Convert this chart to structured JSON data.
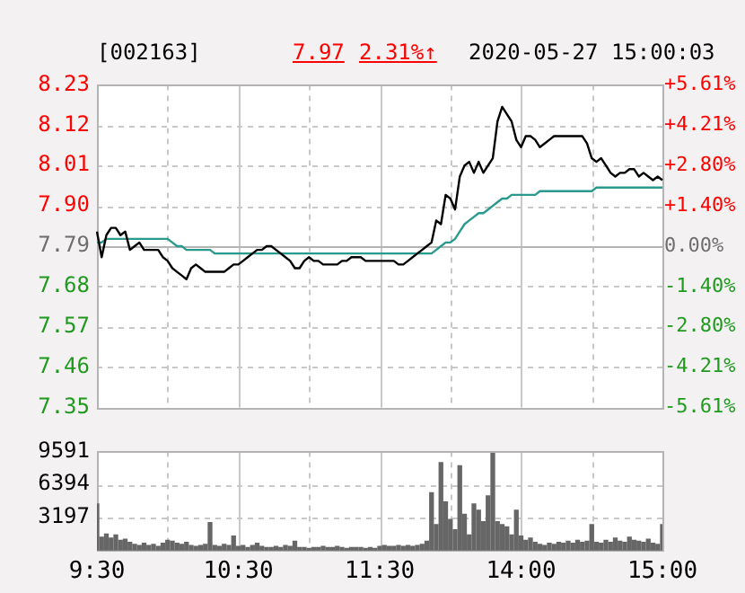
{
  "chart_data": [
    {
      "type": "line",
      "title": "[002163]",
      "annotations": [
        "7.97",
        "2.31%↑",
        "2020-05-27 15:00:03"
      ],
      "categories": [
        null,
        null,
        null,
        null,
        null,
        null,
        null,
        null,
        null,
        null,
        null,
        null,
        null,
        null,
        null,
        null,
        null,
        null,
        null,
        null,
        null,
        null,
        null,
        null,
        null,
        null,
        null,
        null,
        null,
        null,
        null,
        null,
        null,
        null,
        null,
        null,
        null,
        null,
        null,
        null,
        null,
        null,
        null,
        null,
        null,
        null,
        null,
        null,
        null,
        null,
        null,
        null,
        null,
        null,
        null,
        null,
        null,
        null,
        null,
        null,
        null,
        null,
        null,
        null,
        null,
        null,
        null,
        null,
        null,
        null,
        null,
        null,
        null,
        null,
        null,
        null,
        null,
        null,
        null,
        null,
        null,
        null,
        null,
        null,
        null,
        null,
        null,
        null,
        null,
        null,
        null,
        null,
        null,
        null,
        null,
        null,
        null,
        null,
        null,
        null,
        null,
        null,
        null,
        null,
        null,
        null,
        null,
        null,
        null,
        null,
        null,
        null,
        null,
        null,
        null,
        null,
        null,
        null,
        null,
        null,
        null
      ],
      "series": [
        {
          "color": "#000000",
          "values": [
            7.83,
            7.76,
            7.82,
            7.84,
            7.84,
            7.82,
            7.83,
            7.78,
            7.79,
            7.8,
            7.78,
            7.78,
            7.78,
            7.78,
            7.76,
            7.75,
            7.73,
            7.72,
            7.71,
            7.7,
            7.73,
            7.74,
            7.73,
            7.72,
            7.72,
            7.72,
            7.72,
            7.72,
            7.73,
            7.74,
            7.74,
            7.75,
            7.76,
            7.77,
            7.78,
            7.78,
            7.79,
            7.79,
            7.78,
            7.77,
            7.76,
            7.75,
            7.73,
            7.73,
            7.75,
            7.76,
            7.75,
            7.75,
            7.74,
            7.74,
            7.74,
            7.74,
            7.75,
            7.75,
            7.76,
            7.76,
            7.76,
            7.75,
            7.75,
            7.75,
            7.75,
            7.75,
            7.75,
            7.75,
            7.74,
            7.74,
            7.75,
            7.76,
            7.77,
            7.78,
            7.79,
            7.8,
            7.86,
            7.85,
            7.93,
            7.92,
            7.89,
            7.98,
            8.01,
            8.02,
            7.99,
            8.02,
            7.99,
            8.01,
            8.03,
            8.13,
            8.17,
            8.15,
            8.13,
            8.08,
            8.06,
            8.09,
            8.09,
            8.08,
            8.06,
            8.07,
            8.08,
            8.09,
            8.09,
            8.09,
            8.09,
            8.09,
            8.09,
            8.09,
            8.07,
            8.03,
            8.02,
            8.03,
            8.01,
            7.99,
            7.98,
            7.99,
            7.99,
            8.0,
            8.0,
            7.98,
            7.99,
            7.98,
            7.97,
            7.98,
            7.97
          ]
        },
        {
          "color": "#2a9a8f",
          "values": [
            7.8,
            7.8,
            7.81,
            7.81,
            7.81,
            7.81,
            7.81,
            7.81,
            7.81,
            7.81,
            7.81,
            7.81,
            7.81,
            7.81,
            7.81,
            7.81,
            7.8,
            7.79,
            7.79,
            7.78,
            7.78,
            7.78,
            7.78,
            7.78,
            7.78,
            7.77,
            7.77,
            7.77,
            7.77,
            7.77,
            7.77,
            7.77,
            7.77,
            7.77,
            7.77,
            7.77,
            7.77,
            7.77,
            7.77,
            7.77,
            7.77,
            7.77,
            7.77,
            7.77,
            7.77,
            7.77,
            7.77,
            7.77,
            7.77,
            7.77,
            7.77,
            7.77,
            7.77,
            7.77,
            7.77,
            7.77,
            7.77,
            7.77,
            7.77,
            7.77,
            7.77,
            7.77,
            7.77,
            7.77,
            7.77,
            7.77,
            7.77,
            7.77,
            7.77,
            7.77,
            7.77,
            7.77,
            7.78,
            7.79,
            7.8,
            7.8,
            7.81,
            7.83,
            7.85,
            7.86,
            7.87,
            7.88,
            7.88,
            7.89,
            7.9,
            7.91,
            7.92,
            7.92,
            7.93,
            7.93,
            7.93,
            7.93,
            7.93,
            7.93,
            7.94,
            7.94,
            7.94,
            7.94,
            7.94,
            7.94,
            7.94,
            7.94,
            7.94,
            7.94,
            7.94,
            7.94,
            7.95,
            7.95,
            7.95,
            7.95,
            7.95,
            7.95,
            7.95,
            7.95,
            7.95,
            7.95,
            7.95,
            7.95,
            7.95,
            7.95,
            7.95
          ]
        }
      ],
      "ylim": [
        7.35,
        8.23
      ],
      "yticks": [
        7.35,
        7.46,
        7.57,
        7.68,
        7.79,
        {
          "value": 7.9,
          "label": "7.90"
        },
        8.01,
        8.12,
        8.23
      ],
      "y2lim": [
        -5.61,
        5.61
      ],
      "y2ticks": [
        {
          "value": -5.61,
          "label": "-5.61%"
        },
        {
          "value": -4.21,
          "label": "-4.21%"
        },
        {
          "value": -2.8,
          "label": "-2.80%"
        },
        {
          "value": -1.4,
          "label": "-1.40%"
        },
        {
          "value": 0,
          "label": "0.00%"
        },
        {
          "value": 1.4,
          "label": "+1.40%"
        },
        {
          "value": 2.8,
          "label": "+2.80%"
        },
        {
          "value": 4.21,
          "label": "+4.21%"
        },
        {
          "value": 5.61,
          "label": "+5.61%"
        }
      ],
      "ref_lines": [
        {
          "axis": "y",
          "value": 7.79,
          "color": "#b4b4b4"
        }
      ],
      "grid": true,
      "tick_labels": "y"
    },
    {
      "type": "bar",
      "color": "#666666",
      "categories": [
        "9:30",
        null,
        null,
        null,
        null,
        null,
        null,
        null,
        null,
        null,
        null,
        null,
        null,
        null,
        null,
        null,
        null,
        null,
        null,
        null,
        null,
        null,
        null,
        null,
        null,
        null,
        null,
        null,
        null,
        null,
        "10:30",
        null,
        null,
        null,
        null,
        null,
        null,
        null,
        null,
        null,
        null,
        null,
        null,
        null,
        null,
        null,
        null,
        null,
        null,
        null,
        null,
        null,
        null,
        null,
        null,
        null,
        null,
        null,
        null,
        null,
        "11:30",
        null,
        null,
        null,
        null,
        null,
        null,
        null,
        null,
        null,
        null,
        null,
        null,
        null,
        null,
        null,
        null,
        null,
        null,
        null,
        null,
        null,
        null,
        null,
        null,
        null,
        null,
        null,
        null,
        null,
        "14:00",
        null,
        null,
        null,
        null,
        null,
        null,
        null,
        null,
        null,
        null,
        null,
        null,
        null,
        null,
        null,
        null,
        null,
        null,
        null,
        null,
        null,
        null,
        null,
        null,
        null,
        null,
        null,
        null,
        null,
        "15:00"
      ],
      "values": [
        4500,
        1300,
        1600,
        1200,
        1500,
        1000,
        1100,
        800,
        600,
        500,
        700,
        500,
        600,
        400,
        700,
        1000,
        900,
        700,
        600,
        800,
        500,
        400,
        500,
        600,
        2700,
        500,
        400,
        600,
        500,
        1400,
        400,
        500,
        300,
        500,
        700,
        400,
        300,
        300,
        400,
        300,
        500,
        400,
        900,
        300,
        300,
        200,
        300,
        300,
        400,
        300,
        300,
        400,
        300,
        200,
        300,
        300,
        300,
        200,
        300,
        200,
        400,
        500,
        400,
        400,
        500,
        400,
        500,
        400,
        500,
        600,
        900,
        5600,
        2500,
        8500,
        4700,
        3000,
        2000,
        8200,
        3500,
        1500,
        4500,
        3900,
        2800,
        5300,
        9400,
        2800,
        2500,
        2300,
        1500,
        3900,
        1400,
        1000,
        1200,
        800,
        600,
        500,
        700,
        600,
        800,
        700,
        900,
        700,
        1000,
        800,
        900,
        2500,
        800,
        700,
        1000,
        800,
        1200,
        900,
        800,
        1300,
        1000,
        900,
        800,
        1100,
        700,
        600,
        2500
      ],
      "ylim": [
        0,
        9591
      ],
      "yticks": [
        {
          "value": 0,
          "label": null
        },
        3197,
        6394,
        9591
      ],
      "grid": true
    }
  ]
}
